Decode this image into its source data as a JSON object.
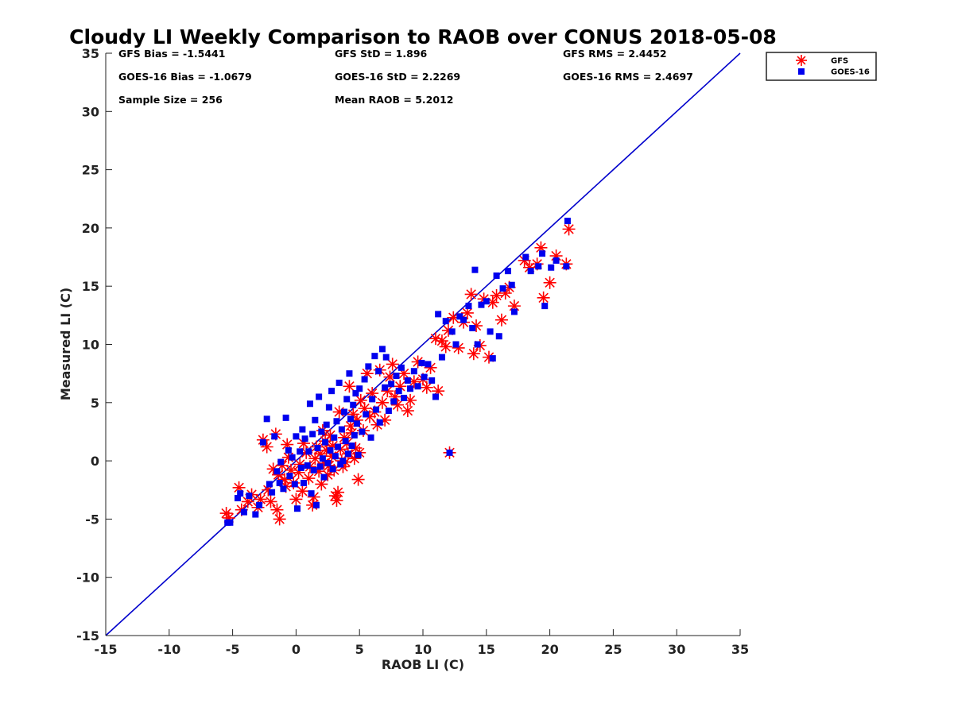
{
  "chart_data": {
    "type": "scatter",
    "title": "Cloudy LI Weekly Comparison to RAOB over CONUS 2018-05-08",
    "xlabel": "RAOB LI (C)",
    "ylabel": "Measured LI (C)",
    "xlim": [
      -15,
      35
    ],
    "ylim": [
      -15,
      35
    ],
    "xticks": [
      "-15",
      "-10",
      "-5",
      "0",
      "5",
      "10",
      "15",
      "20",
      "25",
      "30",
      "35"
    ],
    "yticks": [
      "-15",
      "-10",
      "-5",
      "0",
      "5",
      "10",
      "15",
      "20",
      "25",
      "30",
      "35"
    ],
    "grid": false,
    "legend_position": "top-right",
    "reference_line": {
      "x": [
        -15,
        35
      ],
      "y": [
        -15,
        35
      ],
      "color": "#0000cc"
    },
    "stats": [
      [
        "GFS Bias = -1.5441",
        "GFS StD = 1.896",
        "GFS RMS = 2.4452"
      ],
      [
        "GOES-16 Bias = -1.0679",
        "GOES-16 StD = 2.2269",
        "GOES-16 RMS = 2.4697"
      ],
      [
        "Sample Size = 256",
        "Mean RAOB = 5.2012",
        ""
      ]
    ],
    "series": [
      {
        "name": "GFS",
        "marker": "asterisk",
        "color": "#ff0000",
        "points": [
          [
            -5.5,
            -4.5
          ],
          [
            -5.3,
            -4.9
          ],
          [
            -4.5,
            -2.3
          ],
          [
            -4.3,
            -4.2
          ],
          [
            -3.8,
            -3.5
          ],
          [
            -3.5,
            -2.9
          ],
          [
            -3.0,
            -4.0
          ],
          [
            -2.8,
            -3.3
          ],
          [
            -2.6,
            1.8
          ],
          [
            -2.3,
            1.2
          ],
          [
            -2.2,
            -2.5
          ],
          [
            -2.0,
            -3.5
          ],
          [
            -1.8,
            -0.7
          ],
          [
            -1.6,
            2.3
          ],
          [
            -1.5,
            -4.2
          ],
          [
            -1.4,
            -1.2
          ],
          [
            -1.3,
            -5.0
          ],
          [
            -1.1,
            -0.4
          ],
          [
            -0.9,
            -1.6
          ],
          [
            -0.8,
            -2.2
          ],
          [
            -0.7,
            1.4
          ],
          [
            -0.6,
            0.3
          ],
          [
            -0.4,
            -0.8
          ],
          [
            -0.2,
            -1.9
          ],
          [
            0.0,
            -3.3
          ],
          [
            0.2,
            -1.0
          ],
          [
            0.3,
            -0.3
          ],
          [
            0.5,
            -2.6
          ],
          [
            0.6,
            1.5
          ],
          [
            0.8,
            0.7
          ],
          [
            1.0,
            -1.5
          ],
          [
            1.1,
            -0.5
          ],
          [
            1.3,
            -3.8
          ],
          [
            1.4,
            -3.1
          ],
          [
            1.5,
            0.2
          ],
          [
            1.6,
            1.2
          ],
          [
            1.8,
            -0.9
          ],
          [
            1.9,
            0.6
          ],
          [
            2.0,
            -2.0
          ],
          [
            2.1,
            2.6
          ],
          [
            2.2,
            -0.2
          ],
          [
            2.3,
            1.7
          ],
          [
            2.4,
            0.9
          ],
          [
            2.5,
            -1.2
          ],
          [
            2.6,
            -0.4
          ],
          [
            2.7,
            2.2
          ],
          [
            2.8,
            0.4
          ],
          [
            2.9,
            1.3
          ],
          [
            3.0,
            -0.8
          ],
          [
            3.1,
            -3.0
          ],
          [
            3.2,
            -3.4
          ],
          [
            3.3,
            -2.7
          ],
          [
            3.4,
            4.2
          ],
          [
            3.5,
            1.0
          ],
          [
            3.6,
            0.0
          ],
          [
            3.7,
            -0.5
          ],
          [
            3.8,
            2.0
          ],
          [
            3.9,
            -0.1
          ],
          [
            4.0,
            1.5
          ],
          [
            4.1,
            0.6
          ],
          [
            4.2,
            6.4
          ],
          [
            4.3,
            3.0
          ],
          [
            4.4,
            2.4
          ],
          [
            4.5,
            4.0
          ],
          [
            4.6,
            0.2
          ],
          [
            4.7,
            1.1
          ],
          [
            4.8,
            3.5
          ],
          [
            4.9,
            -1.6
          ],
          [
            5.0,
            0.7
          ],
          [
            5.1,
            5.2
          ],
          [
            5.3,
            2.6
          ],
          [
            5.4,
            4.5
          ],
          [
            5.6,
            7.5
          ],
          [
            5.8,
            3.8
          ],
          [
            6.0,
            5.8
          ],
          [
            6.2,
            4.2
          ],
          [
            6.4,
            3.1
          ],
          [
            6.6,
            7.8
          ],
          [
            6.8,
            5.0
          ],
          [
            7.0,
            3.5
          ],
          [
            7.2,
            6.0
          ],
          [
            7.4,
            7.2
          ],
          [
            7.6,
            8.3
          ],
          [
            7.8,
            5.5
          ],
          [
            8.0,
            4.8
          ],
          [
            8.2,
            6.4
          ],
          [
            8.5,
            7.5
          ],
          [
            8.8,
            4.3
          ],
          [
            9.0,
            5.2
          ],
          [
            9.3,
            6.8
          ],
          [
            9.6,
            8.5
          ],
          [
            10.0,
            7.0
          ],
          [
            10.3,
            6.3
          ],
          [
            10.6,
            8.0
          ],
          [
            11.0,
            10.5
          ],
          [
            11.2,
            6.0
          ],
          [
            11.5,
            10.3
          ],
          [
            11.8,
            9.8
          ],
          [
            12.0,
            11.2
          ],
          [
            12.1,
            0.7
          ],
          [
            12.4,
            12.3
          ],
          [
            12.8,
            9.7
          ],
          [
            13.2,
            11.9
          ],
          [
            13.5,
            12.7
          ],
          [
            13.8,
            14.3
          ],
          [
            14.0,
            9.2
          ],
          [
            14.2,
            11.6
          ],
          [
            14.5,
            9.9
          ],
          [
            14.8,
            13.9
          ],
          [
            15.2,
            8.9
          ],
          [
            15.5,
            13.6
          ],
          [
            15.8,
            14.2
          ],
          [
            16.2,
            12.1
          ],
          [
            16.5,
            14.4
          ],
          [
            16.8,
            14.9
          ],
          [
            17.2,
            13.3
          ],
          [
            18.0,
            17.2
          ],
          [
            18.4,
            16.6
          ],
          [
            19.0,
            16.9
          ],
          [
            19.3,
            18.3
          ],
          [
            19.5,
            14.0
          ],
          [
            20.0,
            15.3
          ],
          [
            20.5,
            17.6
          ],
          [
            21.3,
            16.9
          ],
          [
            21.5,
            19.9
          ]
        ]
      },
      {
        "name": "GOES-16",
        "marker": "square",
        "color": "#0000ee",
        "points": [
          [
            -5.4,
            -5.3
          ],
          [
            -5.2,
            -5.3
          ],
          [
            -4.6,
            -3.2
          ],
          [
            -4.4,
            -2.8
          ],
          [
            -4.1,
            -4.4
          ],
          [
            -3.7,
            -3.0
          ],
          [
            -3.2,
            -4.6
          ],
          [
            -2.9,
            -3.8
          ],
          [
            -2.6,
            1.6
          ],
          [
            -2.3,
            3.6
          ],
          [
            -2.1,
            -2.0
          ],
          [
            -1.9,
            -2.7
          ],
          [
            -1.7,
            2.1
          ],
          [
            -1.5,
            -0.9
          ],
          [
            -1.3,
            -1.9
          ],
          [
            -1.2,
            -0.1
          ],
          [
            -1.0,
            -2.4
          ],
          [
            -0.8,
            3.7
          ],
          [
            -0.6,
            0.9
          ],
          [
            -0.5,
            -1.3
          ],
          [
            -0.3,
            0.3
          ],
          [
            -0.1,
            -2.0
          ],
          [
            0.0,
            2.1
          ],
          [
            0.1,
            -4.1
          ],
          [
            0.3,
            0.8
          ],
          [
            0.4,
            -0.6
          ],
          [
            0.5,
            2.7
          ],
          [
            0.6,
            -1.9
          ],
          [
            0.7,
            1.9
          ],
          [
            0.9,
            -0.4
          ],
          [
            1.0,
            0.8
          ],
          [
            1.1,
            4.9
          ],
          [
            1.2,
            -2.8
          ],
          [
            1.3,
            2.3
          ],
          [
            1.4,
            -0.8
          ],
          [
            1.5,
            3.5
          ],
          [
            1.6,
            -3.8
          ],
          [
            1.7,
            1.1
          ],
          [
            1.8,
            5.5
          ],
          [
            1.9,
            -0.5
          ],
          [
            2.0,
            2.5
          ],
          [
            2.1,
            0.2
          ],
          [
            2.2,
            -1.4
          ],
          [
            2.3,
            1.6
          ],
          [
            2.4,
            3.1
          ],
          [
            2.5,
            -0.2
          ],
          [
            2.6,
            4.6
          ],
          [
            2.7,
            0.9
          ],
          [
            2.8,
            6.0
          ],
          [
            2.9,
            -0.7
          ],
          [
            3.0,
            2.0
          ],
          [
            3.1,
            0.4
          ],
          [
            3.2,
            3.4
          ],
          [
            3.3,
            1.2
          ],
          [
            3.4,
            6.7
          ],
          [
            3.5,
            -0.3
          ],
          [
            3.6,
            2.7
          ],
          [
            3.7,
            0.0
          ],
          [
            3.8,
            4.2
          ],
          [
            3.9,
            1.7
          ],
          [
            4.0,
            5.3
          ],
          [
            4.1,
            0.6
          ],
          [
            4.2,
            7.5
          ],
          [
            4.3,
            3.6
          ],
          [
            4.4,
            1.3
          ],
          [
            4.5,
            4.8
          ],
          [
            4.6,
            2.2
          ],
          [
            4.7,
            5.8
          ],
          [
            4.8,
            3.2
          ],
          [
            4.9,
            0.5
          ],
          [
            5.0,
            6.2
          ],
          [
            5.2,
            2.5
          ],
          [
            5.4,
            7.0
          ],
          [
            5.5,
            4.0
          ],
          [
            5.7,
            8.1
          ],
          [
            5.9,
            2.0
          ],
          [
            6.0,
            5.3
          ],
          [
            6.2,
            9.0
          ],
          [
            6.3,
            4.4
          ],
          [
            6.5,
            7.7
          ],
          [
            6.6,
            3.3
          ],
          [
            6.8,
            9.6
          ],
          [
            7.0,
            6.3
          ],
          [
            7.1,
            8.9
          ],
          [
            7.3,
            4.3
          ],
          [
            7.5,
            6.6
          ],
          [
            7.7,
            5.1
          ],
          [
            7.9,
            7.3
          ],
          [
            8.1,
            6.0
          ],
          [
            8.3,
            8.0
          ],
          [
            8.5,
            5.4
          ],
          [
            8.8,
            6.9
          ],
          [
            9.0,
            6.2
          ],
          [
            9.3,
            7.7
          ],
          [
            9.6,
            6.4
          ],
          [
            9.9,
            8.4
          ],
          [
            10.1,
            7.2
          ],
          [
            10.4,
            8.3
          ],
          [
            10.7,
            6.9
          ],
          [
            11.0,
            5.5
          ],
          [
            11.2,
            12.6
          ],
          [
            11.5,
            8.9
          ],
          [
            11.8,
            12.0
          ],
          [
            12.1,
            0.7
          ],
          [
            12.3,
            11.1
          ],
          [
            12.6,
            10.0
          ],
          [
            12.9,
            12.4
          ],
          [
            13.2,
            12.1
          ],
          [
            13.6,
            13.3
          ],
          [
            13.9,
            11.4
          ],
          [
            14.1,
            16.4
          ],
          [
            14.3,
            10.0
          ],
          [
            14.6,
            13.4
          ],
          [
            15.0,
            13.7
          ],
          [
            15.3,
            11.1
          ],
          [
            15.5,
            8.8
          ],
          [
            15.8,
            15.9
          ],
          [
            16.0,
            10.7
          ],
          [
            16.3,
            14.8
          ],
          [
            16.7,
            16.3
          ],
          [
            17.0,
            15.1
          ],
          [
            17.2,
            12.8
          ],
          [
            18.1,
            17.5
          ],
          [
            18.5,
            16.3
          ],
          [
            19.1,
            16.7
          ],
          [
            19.4,
            17.8
          ],
          [
            19.6,
            13.3
          ],
          [
            20.1,
            16.6
          ],
          [
            20.5,
            17.2
          ],
          [
            21.3,
            16.7
          ],
          [
            21.4,
            20.6
          ]
        ]
      }
    ]
  }
}
